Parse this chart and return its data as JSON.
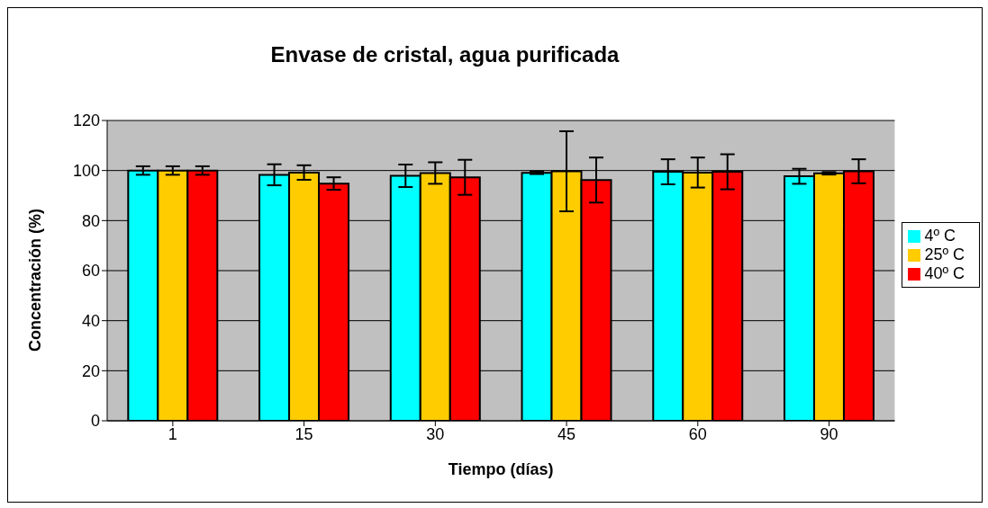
{
  "chart_data": {
    "type": "bar",
    "title": "Envase de cristal, agua purificada",
    "xlabel": "Tiempo (días)",
    "ylabel": "Concentración (%)",
    "categories": [
      "1",
      "15",
      "30",
      "45",
      "60",
      "90"
    ],
    "series": [
      {
        "name": "4º C",
        "color": "#00ffff",
        "values": [
          100,
          98.3,
          97.9,
          99.1,
          99.5,
          97.7
        ],
        "errors": [
          1.7,
          4.2,
          4.5,
          0.5,
          5,
          3
        ]
      },
      {
        "name": "25º C",
        "color": "#ffcc00",
        "values": [
          100,
          99.2,
          99,
          99.7,
          99.2,
          98.9
        ],
        "errors": [
          1.7,
          2.9,
          4.3,
          16,
          6,
          0.5
        ]
      },
      {
        "name": "40º C",
        "color": "#ff0000",
        "values": [
          100,
          94.8,
          97.3,
          96.2,
          99.5,
          99.7
        ],
        "errors": [
          1.7,
          2.5,
          7,
          9,
          7,
          4.8
        ]
      }
    ],
    "ylim": [
      0,
      120
    ],
    "yticks": [
      0,
      20,
      40,
      60,
      80,
      100,
      120
    ],
    "grid": "y",
    "legend": "right"
  }
}
